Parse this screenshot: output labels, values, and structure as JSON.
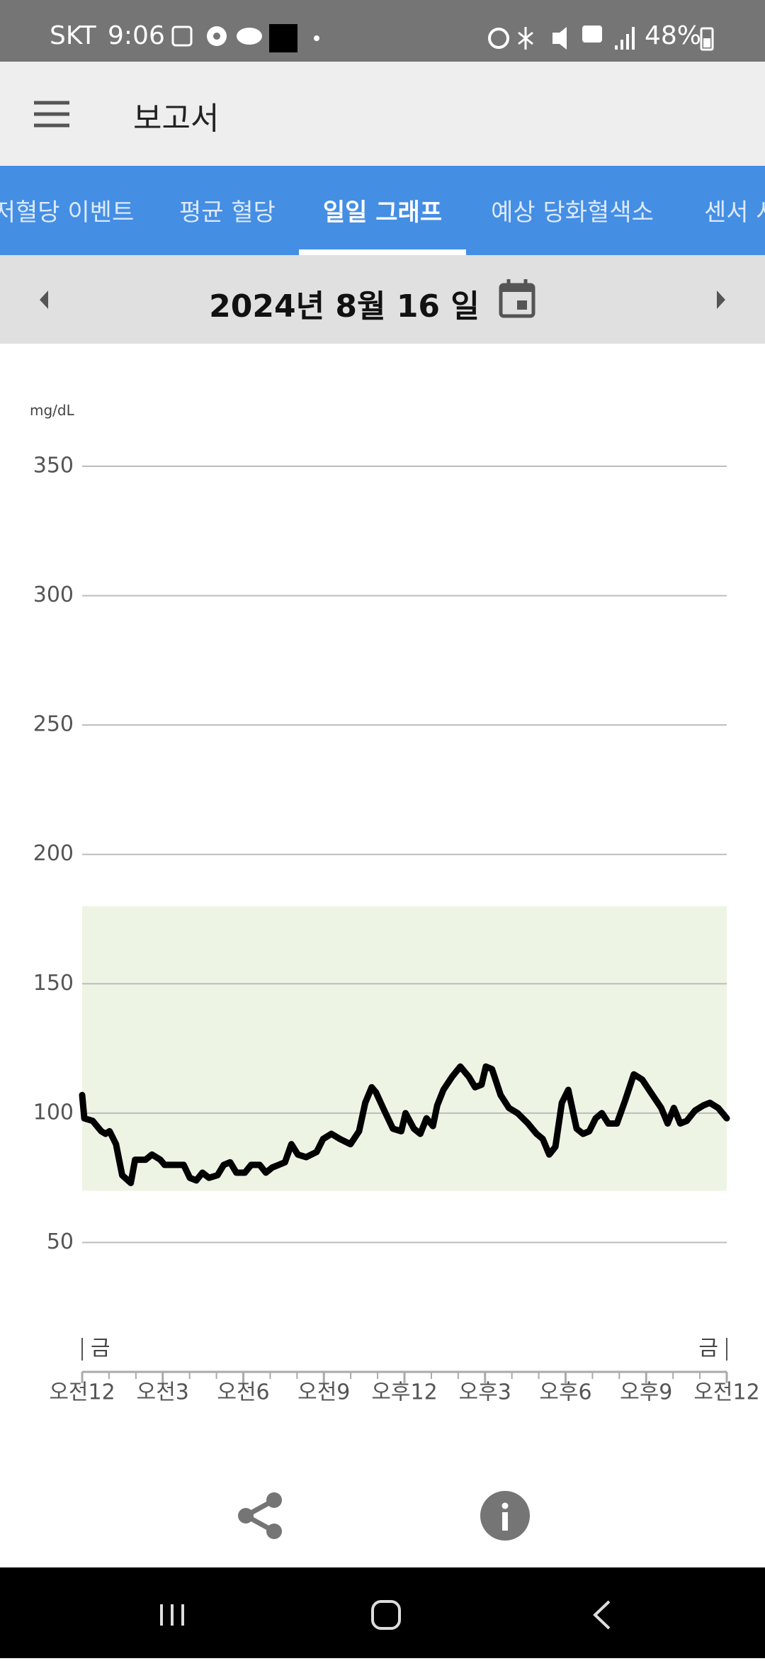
{
  "status_bar": {
    "carrier": "SKT",
    "time": "9:06",
    "battery": "48%"
  },
  "app_bar": {
    "title": "보고서"
  },
  "tabs": [
    "저혈당 이벤트",
    "평균 혈당",
    "일일 그래프",
    "예상 당화혈색소",
    "센서 사용"
  ],
  "date_bar": {
    "date": "2024년 8월 16 일"
  },
  "chart_data": {
    "type": "line",
    "y_label": "mg/dL",
    "x": [
      0,
      0.08,
      0.39,
      0.71,
      0.87,
      1.02,
      1.26,
      1.49,
      1.81,
      1.97,
      2.36,
      2.6,
      2.91,
      3.07,
      3.54,
      3.78,
      4.01,
      4.25,
      4.48,
      4.72,
      5.04,
      5.27,
      5.51,
      5.74,
      6.06,
      6.29,
      6.61,
      6.84,
      7.08,
      7.55,
      7.79,
      8.03,
      8.34,
      8.73,
      8.97,
      9.28,
      9.6,
      9.99,
      10.31,
      10.54,
      10.78,
      10.94,
      11.25,
      11.57,
      11.88,
      12.04,
      12.35,
      12.59,
      12.82,
      13.06,
      13.22,
      13.45,
      13.77,
      14.08,
      14.4,
      14.63,
      14.87,
      15.03,
      15.26,
      15.58,
      15.89,
      16.21,
      16.6,
      16.92,
      17.15,
      17.39,
      17.62,
      17.86,
      18.1,
      18.41,
      18.65,
      18.88,
      19.12,
      19.35,
      19.59,
      19.91,
      20.22,
      20.54,
      20.85,
      21.17,
      21.56,
      21.8,
      22.03,
      22.27,
      22.51,
      22.82,
      23.13,
      23.37,
      23.68,
      24
    ],
    "series": [
      {
        "color": "#000000",
        "values": [
          107,
          98,
          97,
          93,
          92,
          93,
          88,
          76,
          73,
          82,
          82,
          84,
          82,
          80,
          80,
          80,
          75,
          74,
          77,
          75,
          76,
          80,
          81,
          77,
          77,
          80,
          80,
          77,
          79,
          81,
          88,
          84,
          83,
          85,
          90,
          92,
          90,
          88,
          93,
          104,
          110,
          108,
          101,
          94,
          93,
          100,
          94,
          92,
          98,
          95,
          103,
          109,
          114,
          118,
          114,
          110,
          111,
          118,
          117,
          107,
          102,
          100,
          96,
          92,
          90,
          84,
          87,
          104,
          109,
          94,
          92,
          93,
          98,
          100,
          96,
          96,
          105,
          115,
          113,
          108,
          102,
          96,
          102,
          96,
          97,
          101,
          103,
          104,
          102,
          98
        ]
      }
    ],
    "target_range": [
      70,
      180
    ],
    "target_color": "#edf4e4",
    "xlim": [
      0,
      24
    ],
    "ylim": [
      0,
      350
    ],
    "yticks": [
      50,
      100,
      150,
      200,
      250,
      300,
      350
    ],
    "xticks": [
      {
        "value": 0,
        "label": "오전12"
      },
      {
        "value": 3,
        "label": "오전3"
      },
      {
        "value": 6,
        "label": "오전6"
      },
      {
        "value": 9,
        "label": "오전9"
      },
      {
        "value": 12,
        "label": "오후12"
      },
      {
        "value": 15,
        "label": "오후3"
      },
      {
        "value": 18,
        "label": "오후6"
      },
      {
        "value": 21,
        "label": "오후9"
      },
      {
        "value": 24,
        "label": "오전12"
      }
    ],
    "xticks_minor": [
      0,
      1,
      2,
      3,
      4,
      5,
      6,
      7,
      8,
      9,
      10,
      11,
      12,
      13,
      14,
      15,
      16,
      17,
      18,
      19,
      20,
      21,
      22,
      23,
      24
    ],
    "day_markers": [
      {
        "value": 0,
        "label": "금"
      },
      {
        "value": 24,
        "label": "금"
      }
    ],
    "grid": true
  }
}
